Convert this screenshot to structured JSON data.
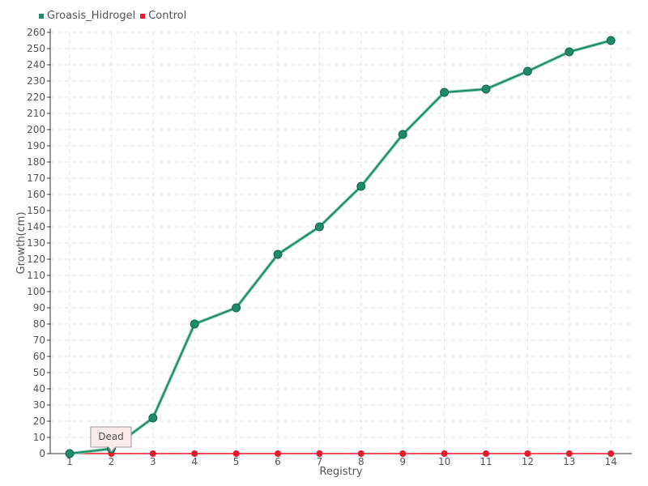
{
  "chart_data": {
    "type": "line",
    "xlabel": "Registry",
    "ylabel": "Growth(cm)",
    "categories": [
      "1",
      "2",
      "3",
      "4",
      "5",
      "6",
      "7",
      "8",
      "9",
      "10",
      "11",
      "12",
      "13",
      "14"
    ],
    "ylim": [
      0,
      260
    ],
    "ytick_step": 10,
    "grid": true,
    "legend_position": "top-left",
    "series": [
      {
        "name": "Groasis_Hidrogel",
        "color": "#1f8a6a",
        "values": [
          0,
          3,
          22,
          80,
          90,
          123,
          140,
          165,
          197,
          223,
          225,
          236,
          248,
          255
        ]
      },
      {
        "name": "Control",
        "color": "#e8192c",
        "values": [
          0,
          0,
          0,
          0,
          0,
          0,
          0,
          0,
          0,
          0,
          0,
          0,
          0,
          0
        ]
      }
    ],
    "annotations": [
      {
        "text": "Dead",
        "x": "2",
        "y": 0
      }
    ]
  }
}
